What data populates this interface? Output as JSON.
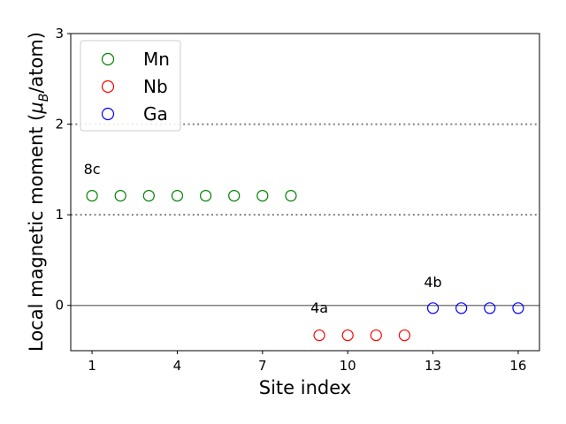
{
  "chart_data": {
    "type": "scatter",
    "title": "",
    "xlabel": "Site index",
    "ylabel_prefix": "Local magnetic moment (",
    "ylabel_mu": "μ",
    "ylabel_sub": "B",
    "ylabel_suffix": "/atom)",
    "xlim": [
      0.25,
      16.75
    ],
    "ylim": [
      -0.5,
      3
    ],
    "xticks": [
      1,
      4,
      7,
      10,
      13,
      16
    ],
    "xtick_labels": [
      "1",
      "4",
      "7",
      "10",
      "13",
      "16"
    ],
    "yticks": [
      0,
      1,
      2,
      3
    ],
    "ytick_labels": [
      "0",
      "1",
      "2",
      "3"
    ],
    "hlines": [
      {
        "y": 0,
        "style": "solid",
        "color": "#808080"
      },
      {
        "y": 1,
        "style": "dotted",
        "color": "#808080"
      },
      {
        "y": 2,
        "style": "dotted",
        "color": "#808080"
      }
    ],
    "legend_position": "top-left",
    "series": [
      {
        "name": "Mn",
        "color": "#008000",
        "marker": "hollow-circle",
        "x": [
          1,
          2,
          3,
          4,
          5,
          6,
          7,
          8
        ],
        "y": [
          1.21,
          1.21,
          1.21,
          1.21,
          1.21,
          1.21,
          1.21,
          1.21
        ]
      },
      {
        "name": "Nb",
        "color": "#ff0000",
        "marker": "hollow-circle",
        "x": [
          9,
          10,
          11,
          12
        ],
        "y": [
          -0.33,
          -0.33,
          -0.33,
          -0.33
        ]
      },
      {
        "name": "Ga",
        "color": "#0000ff",
        "marker": "hollow-circle",
        "x": [
          13,
          14,
          15,
          16
        ],
        "y": [
          -0.03,
          -0.03,
          -0.03,
          -0.03
        ]
      }
    ],
    "annotations": [
      {
        "text": "8c",
        "x": 1,
        "y": 1.45
      },
      {
        "text": "4a",
        "x": 9,
        "y": -0.08
      },
      {
        "text": "4b",
        "x": 13,
        "y": 0.2
      }
    ]
  }
}
